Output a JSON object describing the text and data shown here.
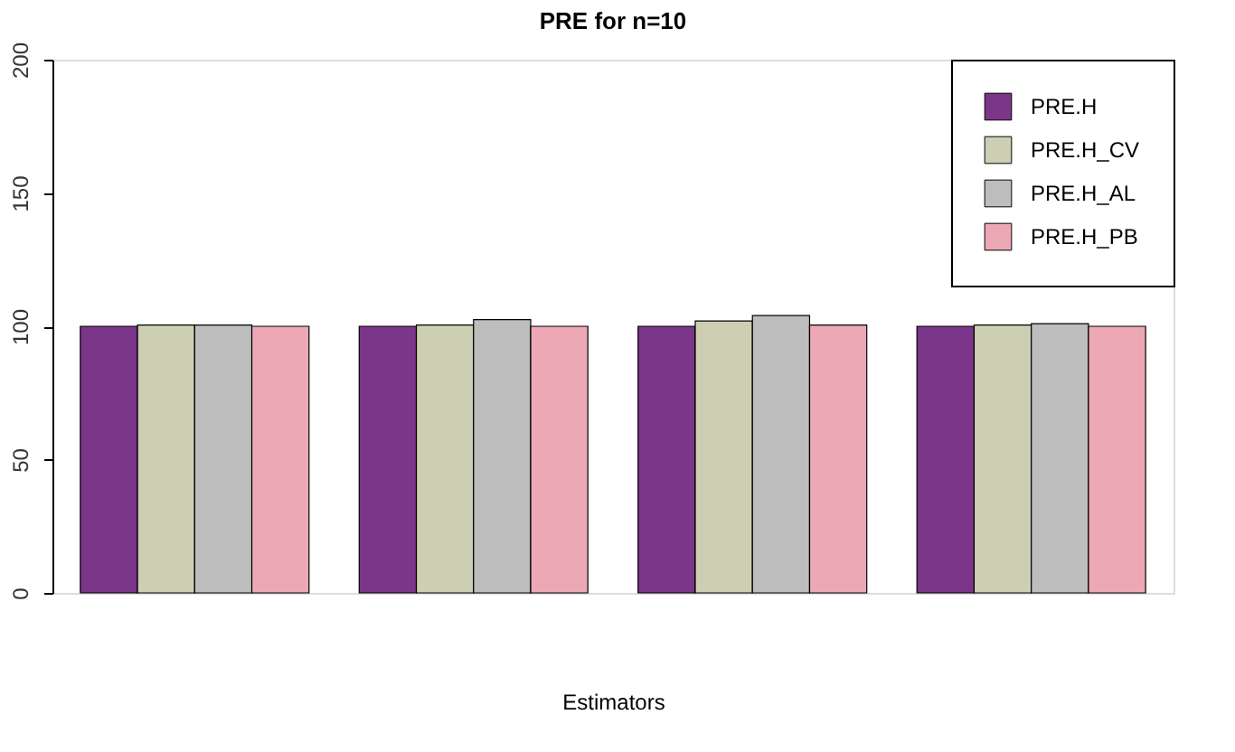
{
  "chart_data": {
    "type": "bar",
    "title": "PRE for n=10",
    "xlabel": "Estimators",
    "categories": [
      null,
      null,
      null,
      null
    ],
    "series": [
      {
        "name": "PRE.H",
        "color": "#7b3589",
        "values": [
          100,
          100,
          100,
          100
        ]
      },
      {
        "name": "PRE.H_CV",
        "color": "#cccfb2",
        "values": [
          100.5,
          100.5,
          102,
          100.5
        ]
      },
      {
        "name": "PRE.H_AL",
        "color": "#bdbdbd",
        "values": [
          100.5,
          102.5,
          104,
          101
        ]
      },
      {
        "name": "PRE.H_PB",
        "color": "#eda8b6",
        "values": [
          100,
          100,
          100.5,
          100
        ]
      }
    ],
    "ylim": [
      0,
      200
    ],
    "yticks": [
      0,
      50,
      100,
      150,
      200
    ],
    "grid": false,
    "legend": "top right",
    "tick_labels": "y"
  }
}
